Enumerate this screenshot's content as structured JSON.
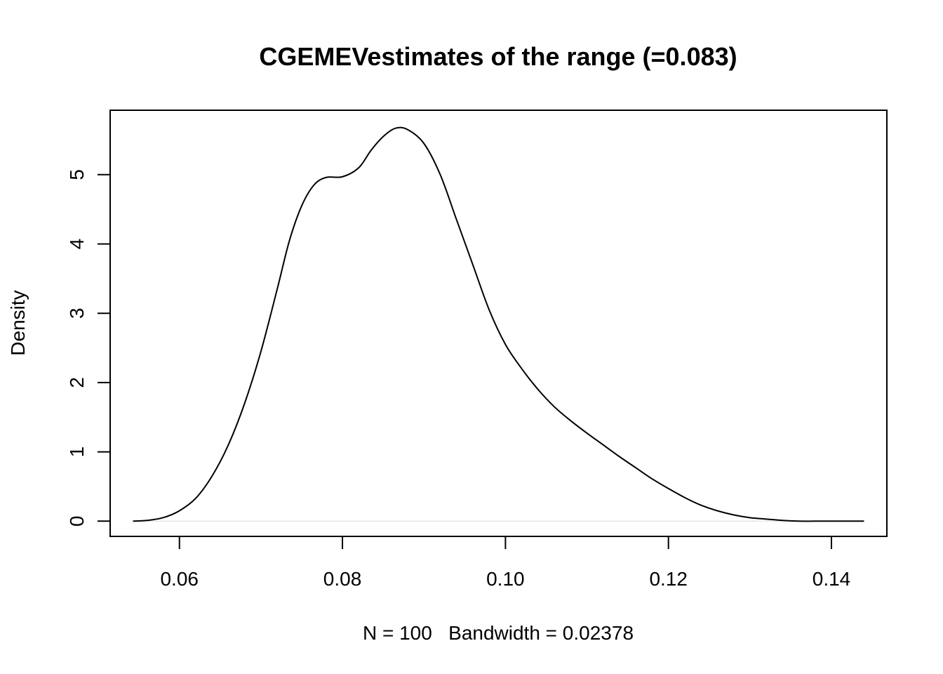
{
  "chart_data": {
    "type": "line",
    "title": "CGEMEVestimates of the range (=0.083)",
    "xlabel": "N = 100   Bandwidth = 0.02378",
    "ylabel": "Density",
    "x_ticks": [
      0.06,
      0.08,
      0.1,
      0.12,
      0.14
    ],
    "x_tick_labels": [
      "0.06",
      "0.08",
      "0.10",
      "0.12",
      "0.14"
    ],
    "y_ticks": [
      0,
      1,
      2,
      3,
      4,
      5
    ],
    "y_tick_labels": [
      "0",
      "1",
      "2",
      "3",
      "4",
      "5"
    ],
    "xlim": [
      0.0515,
      0.1468
    ],
    "ylim": [
      -0.22,
      5.93
    ],
    "grid": false,
    "legend": "none",
    "series": [
      {
        "x": [
          0.0543,
          0.056,
          0.058,
          0.06,
          0.062,
          0.064,
          0.066,
          0.068,
          0.07,
          0.072,
          0.0735,
          0.075,
          0.0765,
          0.078,
          0.08,
          0.082,
          0.0835,
          0.085,
          0.0865,
          0.088,
          0.09,
          0.092,
          0.094,
          0.096,
          0.098,
          0.1,
          0.102,
          0.104,
          0.106,
          0.108,
          0.11,
          0.112,
          0.114,
          0.116,
          0.118,
          0.12,
          0.122,
          0.124,
          0.126,
          0.128,
          0.13,
          0.132,
          0.134,
          0.136,
          0.138,
          0.14,
          0.142,
          0.144
        ],
        "y": [
          0.0,
          0.01,
          0.05,
          0.15,
          0.33,
          0.65,
          1.1,
          1.7,
          2.45,
          3.35,
          4.05,
          4.55,
          4.85,
          4.96,
          4.97,
          5.1,
          5.35,
          5.55,
          5.67,
          5.65,
          5.45,
          5.0,
          4.35,
          3.7,
          3.05,
          2.55,
          2.2,
          1.9,
          1.65,
          1.45,
          1.27,
          1.1,
          0.93,
          0.77,
          0.61,
          0.47,
          0.34,
          0.23,
          0.15,
          0.09,
          0.05,
          0.03,
          0.01,
          0.0,
          0.0,
          0.0,
          0.0,
          0.0
        ]
      }
    ]
  }
}
